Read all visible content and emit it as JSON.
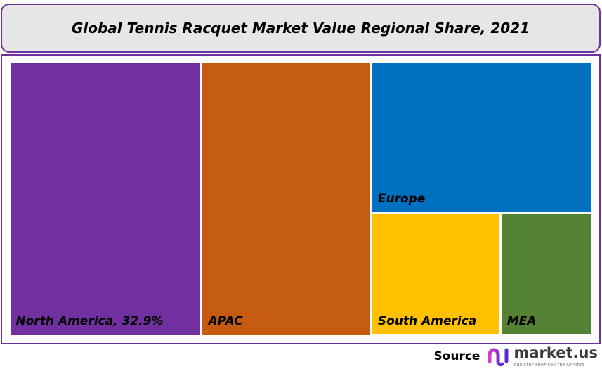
{
  "chart_data": {
    "type": "treemap",
    "title": "Global Tennis Racquet Market Value Regional Share, 2021",
    "items": [
      {
        "name": "North America",
        "label": "North America, 32.9%",
        "value": 32.9,
        "color": "#7030a0"
      },
      {
        "name": "APAC",
        "label": "APAC",
        "value": 29.0,
        "color": "#c55a11"
      },
      {
        "name": "Europe",
        "label": "Europe",
        "value": 20.9,
        "color": "#0070c0"
      },
      {
        "name": "South America",
        "label": "South America",
        "value": 9.9,
        "color": "#ffc000"
      },
      {
        "name": "MEA",
        "label": "MEA",
        "value": 7.1,
        "color": "#548235"
      }
    ],
    "value_estimated_except": [
      "North America"
    ]
  },
  "source": {
    "label": "Source",
    "logo_name": "market.us",
    "logo_tagline": "ONE STOP SHOP FOR THE REPORTS"
  },
  "colors": {
    "border": "#7030a0",
    "title_bg": "#e7e6e6"
  }
}
